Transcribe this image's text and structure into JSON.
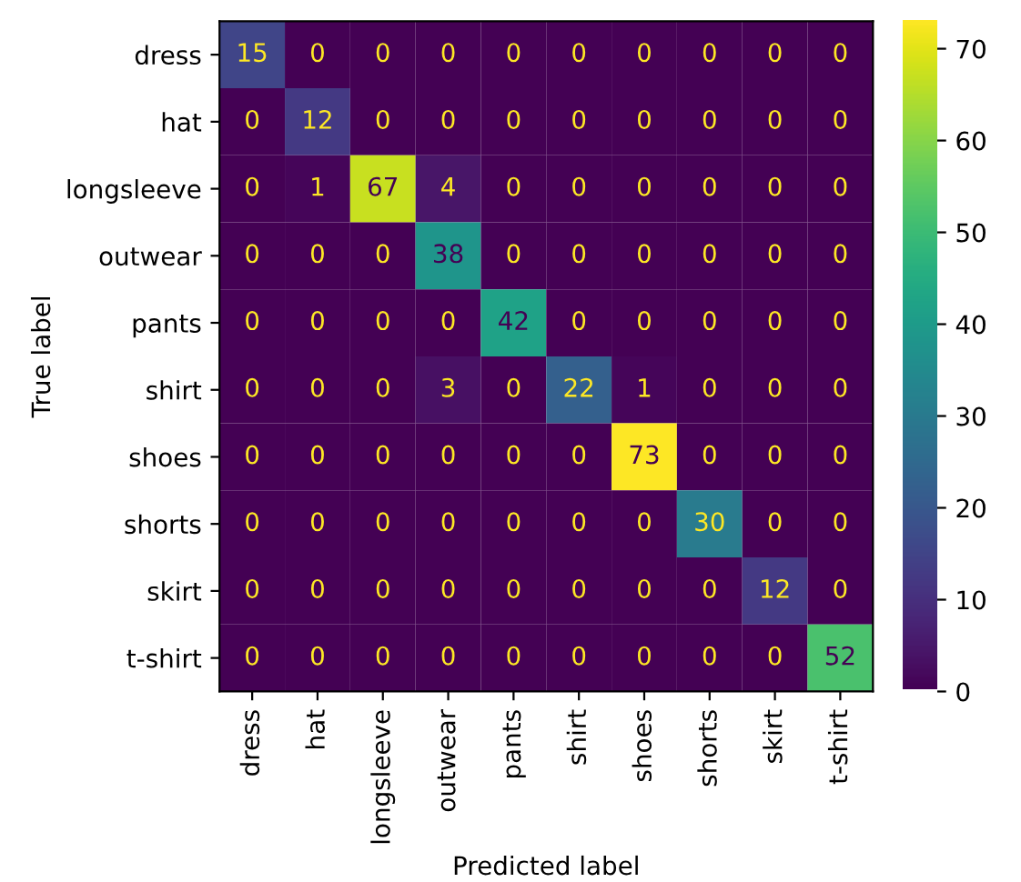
{
  "chart_data": {
    "type": "heatmap",
    "xlabel": "Predicted label",
    "ylabel": "True label",
    "categories": [
      "dress",
      "hat",
      "longsleeve",
      "outwear",
      "pants",
      "shirt",
      "shoes",
      "shorts",
      "skirt",
      "t-shirt"
    ],
    "y_categories": [
      "dress",
      "hat",
      "longsleeve",
      "outwear",
      "pants",
      "shirt",
      "shoes",
      "shorts",
      "skirt",
      "t-shirt"
    ],
    "cells": [
      [
        15,
        0,
        0,
        0,
        0,
        0,
        0,
        0,
        0,
        0
      ],
      [
        0,
        12,
        0,
        0,
        0,
        0,
        0,
        0,
        0,
        0
      ],
      [
        0,
        1,
        67,
        4,
        0,
        0,
        0,
        0,
        0,
        0
      ],
      [
        0,
        0,
        0,
        38,
        0,
        0,
        0,
        0,
        0,
        0
      ],
      [
        0,
        0,
        0,
        0,
        42,
        0,
        0,
        0,
        0,
        0
      ],
      [
        0,
        0,
        0,
        3,
        0,
        22,
        1,
        0,
        0,
        0
      ],
      [
        0,
        0,
        0,
        0,
        0,
        0,
        73,
        0,
        0,
        0
      ],
      [
        0,
        0,
        0,
        0,
        0,
        0,
        0,
        30,
        0,
        0
      ],
      [
        0,
        0,
        0,
        0,
        0,
        0,
        0,
        0,
        12,
        0
      ],
      [
        0,
        0,
        0,
        0,
        0,
        0,
        0,
        0,
        0,
        52
      ]
    ],
    "clim": [
      0,
      73
    ],
    "cticks": [
      0,
      10,
      20,
      30,
      40,
      50,
      60,
      70
    ],
    "data_labels": true
  }
}
